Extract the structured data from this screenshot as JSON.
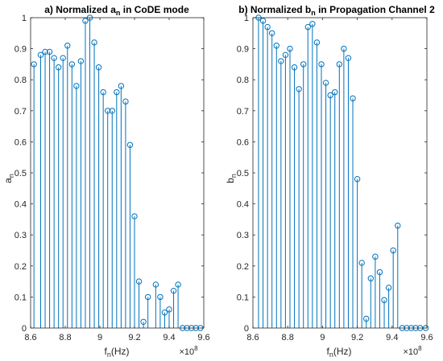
{
  "colors": {
    "stem": "#0072bd",
    "axis": "#262626",
    "background": "#ffffff"
  },
  "chart_data": [
    {
      "type": "stem",
      "title": "a) Normalized a",
      "title_sub": "n",
      "title_rest": " in CoDE mode",
      "xlabel": "f",
      "xlabel_sub": "n",
      "xlabel_rest": "(Hz)",
      "ylabel": "a",
      "ylabel_sub": "n",
      "x_exponent_base": "×10",
      "x_exponent": "8",
      "xlim": [
        8.6,
        9.6
      ],
      "ylim": [
        0,
        1
      ],
      "xticks": [
        "8.6",
        "8.8",
        "9",
        "9.2",
        "9.4",
        "9.6"
      ],
      "xtick_values": [
        8.6,
        8.8,
        9.0,
        9.2,
        9.4,
        9.6
      ],
      "yticks": [
        "0",
        "0.1",
        "0.2",
        "0.3",
        "0.4",
        "0.5",
        "0.6",
        "0.7",
        "0.8",
        "0.9",
        "1"
      ],
      "ytick_values": [
        0,
        0.1,
        0.2,
        0.3,
        0.4,
        0.5,
        0.6,
        0.7,
        0.8,
        0.9,
        1
      ],
      "x": [
        8.6194,
        8.6581,
        8.6839,
        8.7097,
        8.7355,
        8.7613,
        8.7871,
        8.8129,
        8.8387,
        8.8645,
        8.8903,
        8.9161,
        8.9419,
        8.9677,
        8.9935,
        9.0194,
        9.0452,
        9.071,
        9.0968,
        9.1226,
        9.1484,
        9.1742,
        9.2,
        9.2258,
        9.2516,
        9.2774,
        9.3226,
        9.3484,
        9.3742,
        9.4,
        9.4258,
        9.4516,
        9.4774,
        9.5032,
        9.529,
        9.5548,
        9.5806
      ],
      "y": [
        0.85,
        0.88,
        0.89,
        0.89,
        0.87,
        0.84,
        0.87,
        0.91,
        0.85,
        0.78,
        0.86,
        0.99,
        1.0,
        0.92,
        0.84,
        0.76,
        0.7,
        0.7,
        0.76,
        0.78,
        0.73,
        0.59,
        0.36,
        0.15,
        0.02,
        0.1,
        0.14,
        0.1,
        0.05,
        0.06,
        0.12,
        0.14,
        0.0,
        0.0,
        0.0,
        0.0,
        0.0
      ],
      "grid": false
    },
    {
      "type": "stem",
      "title": "b) Normalized b",
      "title_sub": "n",
      "title_rest": " in Propagation Channel 2",
      "xlabel": "f",
      "xlabel_sub": "n",
      "xlabel_rest": "(Hz)",
      "ylabel": "b",
      "ylabel_sub": "n",
      "x_exponent_base": "×10",
      "x_exponent": "8",
      "xlim": [
        8.6,
        9.6
      ],
      "ylim": [
        0,
        1
      ],
      "xticks": [
        "8.6",
        "8.8",
        "9",
        "9.2",
        "9.4",
        "9.6"
      ],
      "xtick_values": [
        8.6,
        8.8,
        9.0,
        9.2,
        9.4,
        9.6
      ],
      "yticks": [
        "0",
        "0.1",
        "0.2",
        "0.3",
        "0.4",
        "0.5",
        "0.6",
        "0.7",
        "0.8",
        "0.9",
        "1"
      ],
      "ytick_values": [
        0,
        0.1,
        0.2,
        0.3,
        0.4,
        0.5,
        0.6,
        0.7,
        0.8,
        0.9,
        1
      ],
      "x": [
        8.6323,
        8.6581,
        8.6839,
        8.7097,
        8.7355,
        8.7613,
        8.7871,
        8.8129,
        8.8387,
        8.8645,
        8.8903,
        8.9161,
        8.9419,
        8.9677,
        8.9935,
        9.0194,
        9.0452,
        9.071,
        9.0968,
        9.1226,
        9.1484,
        9.1742,
        9.2,
        9.2258,
        9.2516,
        9.2774,
        9.3032,
        9.329,
        9.3548,
        9.3806,
        9.4064,
        9.4323,
        9.4581,
        9.4839,
        9.5097,
        9.5355,
        9.5613,
        9.5935
      ],
      "y": [
        1.0,
        0.99,
        0.97,
        0.95,
        0.91,
        0.86,
        0.88,
        0.9,
        0.84,
        0.77,
        0.85,
        0.97,
        0.98,
        0.92,
        0.85,
        0.79,
        0.75,
        0.76,
        0.85,
        0.9,
        0.87,
        0.74,
        0.48,
        0.21,
        0.03,
        0.16,
        0.23,
        0.18,
        0.09,
        0.13,
        0.25,
        0.33,
        0.0,
        0.0,
        0.0,
        0.0,
        0.0,
        0.0
      ],
      "grid": false
    }
  ]
}
